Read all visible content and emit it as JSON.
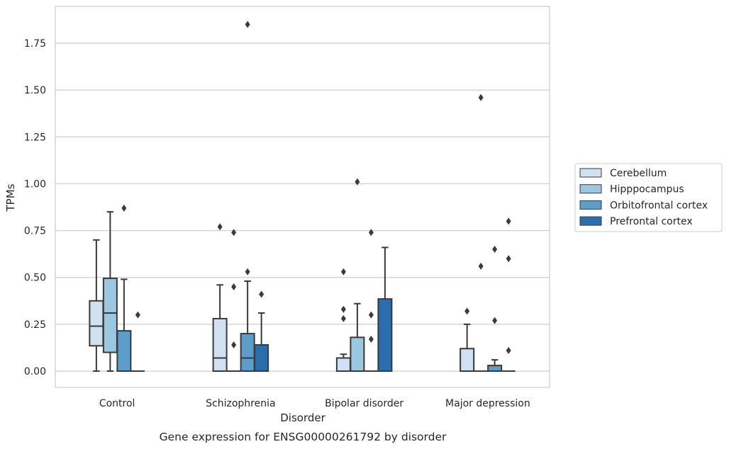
{
  "chart_data": {
    "type": "box",
    "title": "",
    "caption": "Gene expression for ENSG00000261792 by disorder",
    "xlabel": "Disorder",
    "ylabel": "TPMs",
    "ylim": [
      -0.09,
      1.95
    ],
    "yticks": [
      0.0,
      0.25,
      0.5,
      0.75,
      1.0,
      1.25,
      1.5,
      1.75
    ],
    "ytick_labels": [
      "0.00",
      "0.25",
      "0.50",
      "0.75",
      "1.00",
      "1.25",
      "1.50",
      "1.75"
    ],
    "grid": "horizontal",
    "legend_position": "outside-right",
    "categories": [
      "Control",
      "Schizophrenia",
      "Bipolar disorder",
      "Major depression"
    ],
    "series": [
      {
        "name": "Cerebellum",
        "color": "#d0e1f2",
        "boxes": [
          {
            "whislo": 0.0,
            "q1": 0.135,
            "med": 0.24,
            "q3": 0.375,
            "whishi": 0.7,
            "fliers": []
          },
          {
            "whislo": 0.0,
            "q1": 0.0,
            "med": 0.07,
            "q3": 0.28,
            "whishi": 0.46,
            "fliers": [
              0.77
            ]
          },
          {
            "whislo": 0.0,
            "q1": 0.0,
            "med": 0.0,
            "q3": 0.07,
            "whishi": 0.09,
            "fliers": [
              0.28,
              0.33,
              0.53
            ]
          },
          {
            "whislo": 0.0,
            "q1": 0.0,
            "med": 0.0,
            "q3": 0.12,
            "whishi": 0.25,
            "fliers": [
              0.32
            ]
          }
        ]
      },
      {
        "name": "Hipppocampus",
        "color": "#9ac8e0",
        "boxes": [
          {
            "whislo": 0.0,
            "q1": 0.1,
            "med": 0.31,
            "q3": 0.495,
            "whishi": 0.85,
            "fliers": []
          },
          {
            "whislo": 0.0,
            "q1": 0.0,
            "med": 0.0,
            "q3": 0.0,
            "whishi": 0.0,
            "fliers": [
              0.14,
              0.45,
              0.74
            ]
          },
          {
            "whislo": 0.0,
            "q1": 0.0,
            "med": 0.0,
            "q3": 0.18,
            "whishi": 0.36,
            "fliers": [
              1.01
            ]
          },
          {
            "whislo": 0.0,
            "q1": 0.0,
            "med": 0.0,
            "q3": 0.0,
            "whishi": 0.0,
            "fliers": [
              0.56,
              1.46
            ]
          }
        ]
      },
      {
        "name": "Orbitofrontal cortex",
        "color": "#5a9ec9",
        "boxes": [
          {
            "whislo": 0.0,
            "q1": 0.0,
            "med": 0.0,
            "q3": 0.215,
            "whishi": 0.49,
            "fliers": [
              0.87
            ]
          },
          {
            "whislo": 0.0,
            "q1": 0.0,
            "med": 0.07,
            "q3": 0.2,
            "whishi": 0.48,
            "fliers": [
              0.53,
              1.85
            ]
          },
          {
            "whislo": 0.0,
            "q1": 0.0,
            "med": 0.0,
            "q3": 0.0,
            "whishi": 0.0,
            "fliers": [
              0.17,
              0.3,
              0.74
            ]
          },
          {
            "whislo": 0.0,
            "q1": 0.0,
            "med": 0.0,
            "q3": 0.03,
            "whishi": 0.06,
            "fliers": [
              0.27,
              0.65
            ]
          }
        ]
      },
      {
        "name": "Prefrontal cortex",
        "color": "#2b6ead",
        "boxes": [
          {
            "whislo": 0.0,
            "q1": 0.0,
            "med": 0.0,
            "q3": 0.0,
            "whishi": 0.0,
            "fliers": [
              0.3
            ]
          },
          {
            "whislo": 0.0,
            "q1": 0.0,
            "med": 0.0,
            "q3": 0.14,
            "whishi": 0.31,
            "fliers": [
              0.41
            ]
          },
          {
            "whislo": 0.0,
            "q1": 0.0,
            "med": 0.0,
            "q3": 0.385,
            "whishi": 0.66,
            "fliers": []
          },
          {
            "whislo": 0.0,
            "q1": 0.0,
            "med": 0.0,
            "q3": 0.0,
            "whishi": 0.0,
            "fliers": [
              0.11,
              0.6,
              0.8
            ]
          }
        ]
      }
    ]
  }
}
